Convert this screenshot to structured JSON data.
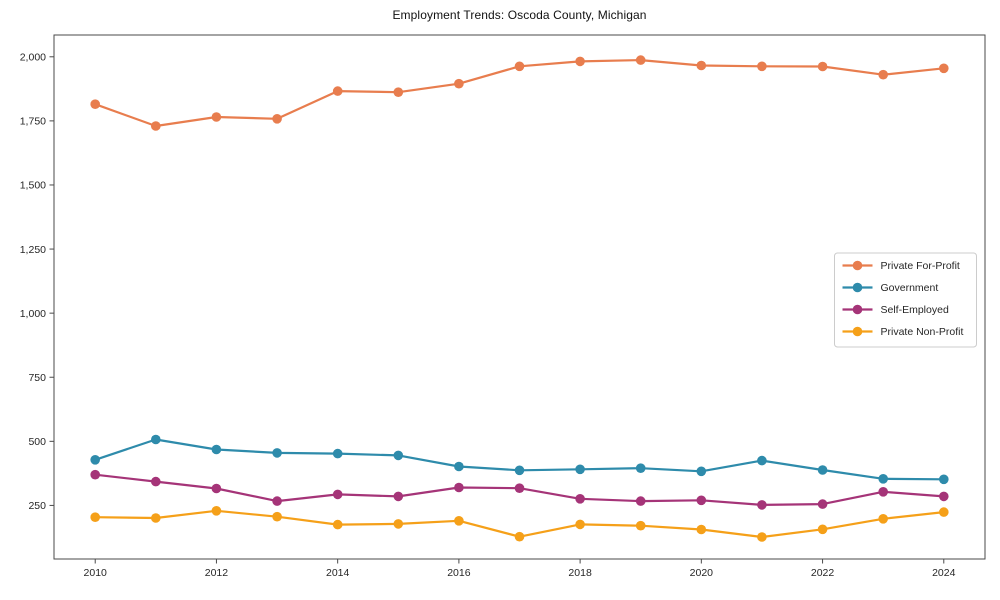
{
  "chart_data": {
    "type": "line",
    "title": "Employment Trends: Oscoda County, Michigan",
    "xlabel": "",
    "ylabel": "",
    "x": [
      2010,
      2011,
      2012,
      2013,
      2014,
      2015,
      2016,
      2017,
      2018,
      2019,
      2020,
      2021,
      2022,
      2023,
      2024
    ],
    "series": [
      {
        "name": "Private For-Profit",
        "color": "#E87D4E",
        "values": [
          1815,
          1730,
          1765,
          1758,
          1866,
          1862,
          1895,
          1963,
          1982,
          1987,
          1966,
          1963,
          1962,
          1930,
          1955
        ]
      },
      {
        "name": "Government",
        "color": "#2E8BAB",
        "values": [
          428,
          507,
          468,
          455,
          452,
          445,
          402,
          387,
          391,
          395,
          383,
          425,
          388,
          354,
          352
        ]
      },
      {
        "name": "Self-Employed",
        "color": "#A53478",
        "values": [
          370,
          343,
          316,
          267,
          293,
          285,
          320,
          317,
          276,
          267,
          270,
          252,
          255,
          303,
          285
        ]
      },
      {
        "name": "Private Non-Profit",
        "color": "#F5A019",
        "values": [
          204,
          201,
          229,
          206,
          175,
          178,
          190,
          128,
          176,
          171,
          156,
          127,
          157,
          198,
          224
        ]
      }
    ],
    "xticks": [
      2010,
      2012,
      2014,
      2016,
      2018,
      2020,
      2022,
      2024
    ],
    "yticks": [
      250,
      500,
      750,
      1000,
      1250,
      1500,
      1750,
      2000
    ],
    "ytick_labels": [
      "250",
      "500",
      "750",
      "1,000",
      "1,250",
      "1,500",
      "1,750",
      "2,000"
    ],
    "xlim": [
      2009.32,
      2024.68
    ],
    "ylim": [
      41,
      2085
    ],
    "grid": false,
    "legend_position": "center right",
    "marker": "circle",
    "spine_color": "#4a4a4a",
    "tick_label_color": "#262626",
    "legend_border_color": "#cccccc",
    "legend_background": "rgba(255,255,255,0.9)"
  }
}
